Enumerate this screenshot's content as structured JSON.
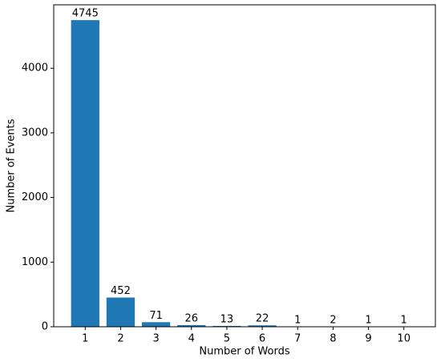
{
  "chart_data": {
    "type": "bar",
    "x_label": "Number of Words",
    "y_label": "Number of Events",
    "x": [
      1,
      2,
      3,
      4,
      5,
      6,
      7,
      8,
      9,
      10
    ],
    "values": [
      4745,
      452,
      71,
      26,
      13,
      22,
      1,
      2,
      1,
      1
    ],
    "color": "#1f77b4",
    "bar_width": 0.8,
    "xlim": [
      0.11,
      10.89
    ],
    "xticks": [
      1,
      2,
      3,
      4,
      5,
      6,
      7,
      8,
      9,
      10
    ],
    "ylim": [
      0,
      4982
    ],
    "yticks": [
      0,
      1000,
      2000,
      3000,
      4000
    ]
  }
}
